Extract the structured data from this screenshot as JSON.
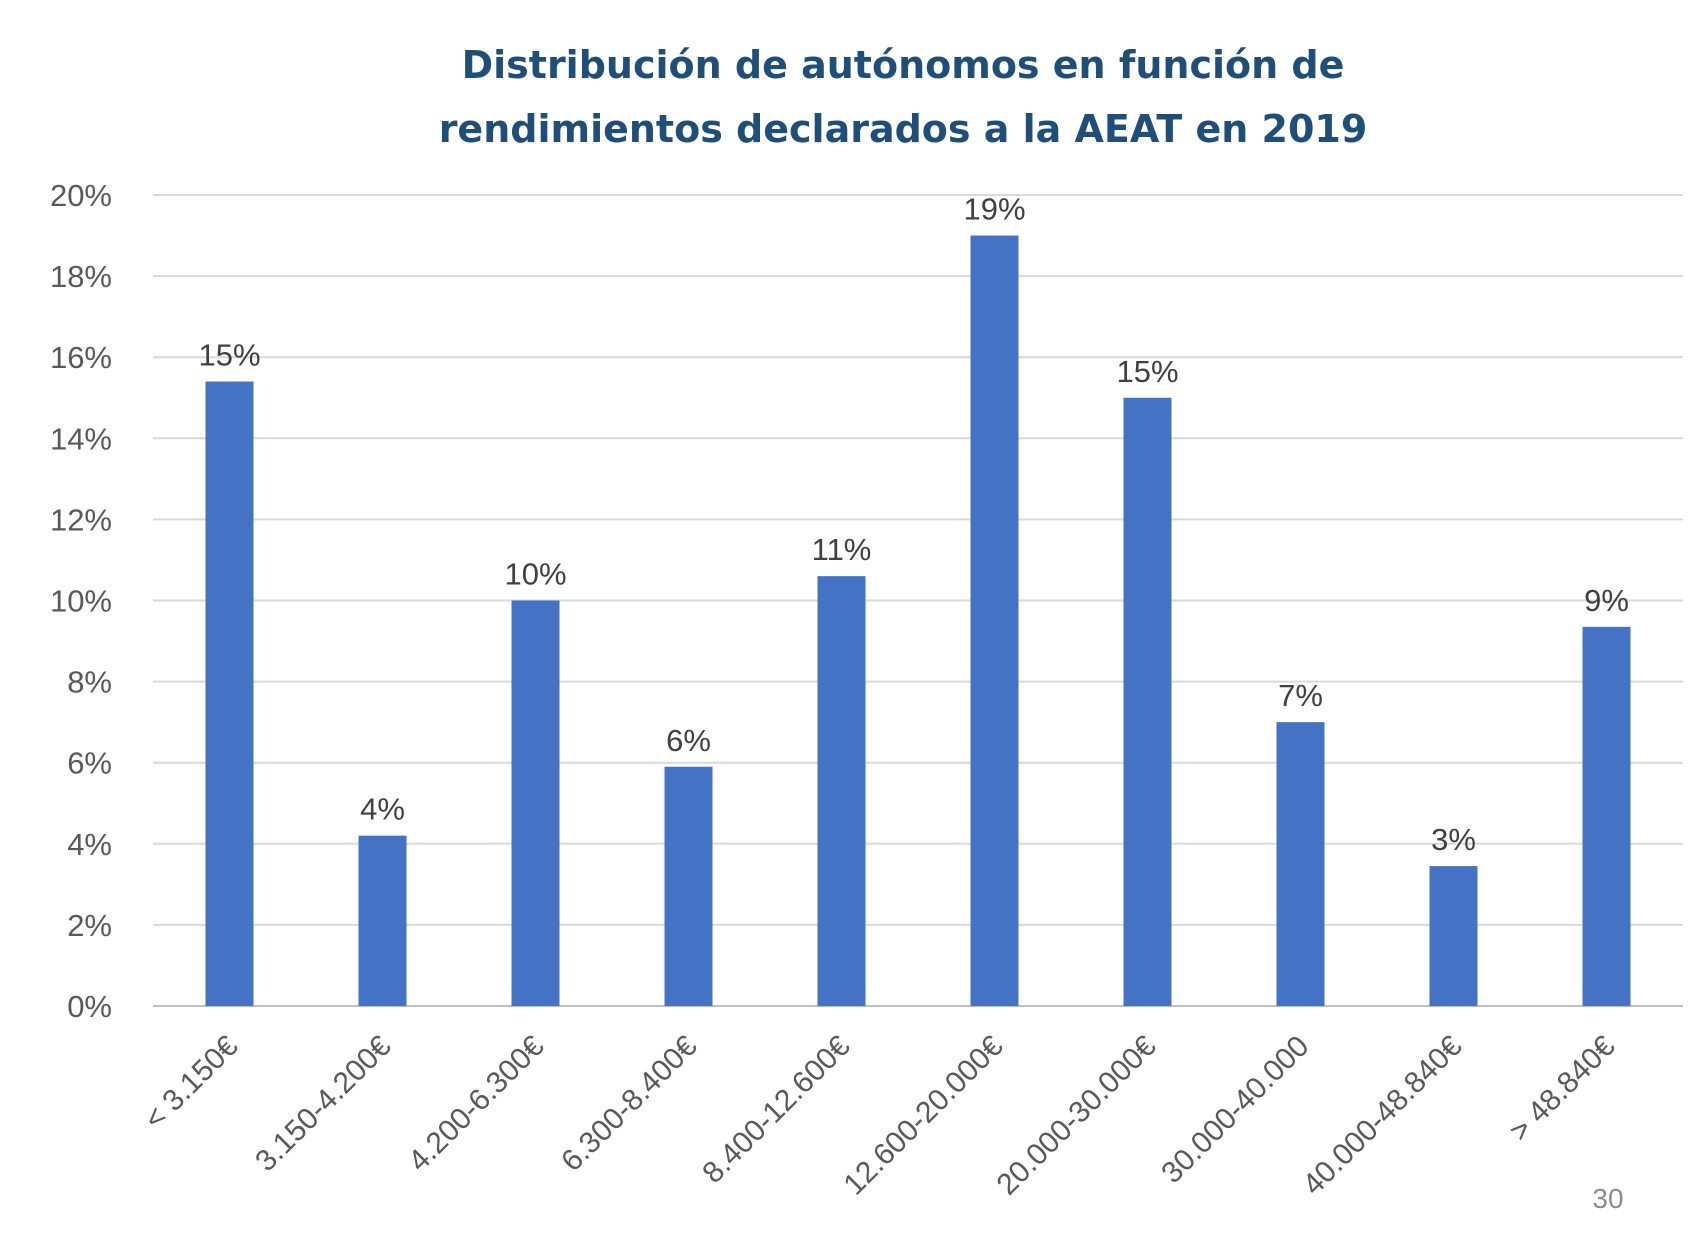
{
  "chart_data": {
    "type": "bar",
    "title": "Distribución de autónomos en función de rendimientos declarados a la AEAT en 2019",
    "title_lines": [
      "Distribución de autónomos en función de",
      "rendimientos declarados a la AEAT en 2019"
    ],
    "xlabel": "",
    "ylabel": "",
    "categories": [
      "< 3.150€",
      "3.150-4.200€",
      "4.200-6.300€",
      "6.300-8.400€",
      "8.400-12.600€",
      "12.600-20.000€",
      "20.000-30.000€",
      "30.000-40.000",
      "40.000-48.840€",
      "> 48.840€"
    ],
    "values": [
      15.4,
      4.2,
      10.0,
      5.9,
      10.6,
      19.0,
      15.0,
      7.0,
      3.45,
      9.35
    ],
    "data_labels": [
      "15%",
      "4%",
      "10%",
      "6%",
      "11%",
      "19%",
      "15%",
      "7%",
      "3%",
      "9%"
    ],
    "ylim": [
      0,
      20
    ],
    "yticks": [
      0,
      2,
      4,
      6,
      8,
      10,
      12,
      14,
      16,
      18,
      20
    ],
    "ytick_labels": [
      "0%",
      "2%",
      "4%",
      "6%",
      "8%",
      "10%",
      "12%",
      "14%",
      "16%",
      "18%",
      "20%"
    ],
    "grid": true,
    "legend": "none",
    "bar_color": "#4472c4",
    "title_color": "#1f4e79"
  },
  "page_number": "30"
}
